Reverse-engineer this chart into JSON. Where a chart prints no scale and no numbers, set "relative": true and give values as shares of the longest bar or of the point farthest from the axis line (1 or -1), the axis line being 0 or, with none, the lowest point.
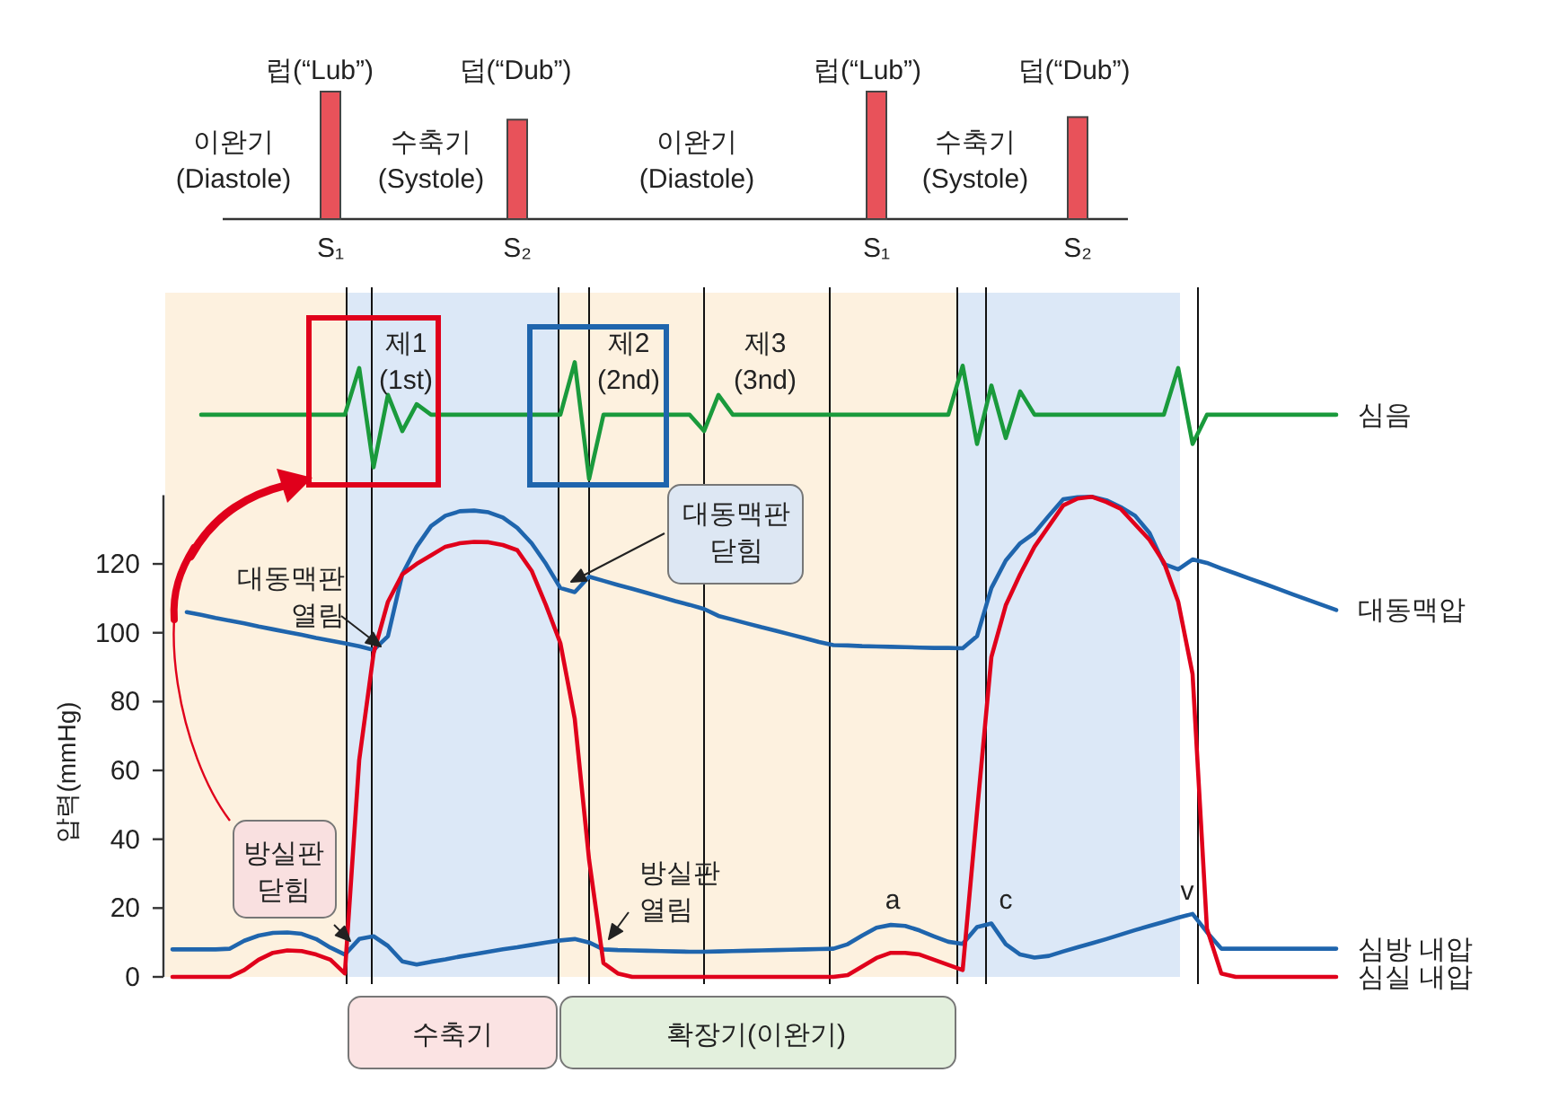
{
  "chart_data": [
    {
      "type": "bar",
      "relative": true,
      "color": "#e8525a",
      "categories": [
        null,
        null,
        null,
        null,
        null,
        null,
        null,
        null,
        null,
        null,
        null,
        "S₁",
        null,
        null,
        null,
        null,
        null,
        null,
        null,
        null,
        null,
        null,
        null,
        null,
        "S₂",
        null,
        null,
        null,
        null,
        null,
        null,
        null,
        null,
        null,
        null,
        null,
        null,
        null,
        null,
        null,
        null,
        null,
        null,
        null,
        null,
        null,
        null,
        null,
        null,
        "S₁",
        null,
        null,
        null,
        null,
        null,
        null,
        null,
        null,
        null,
        null,
        null,
        null,
        null,
        "S₂",
        null,
        null,
        null,
        null,
        null,
        null,
        null,
        null,
        null,
        null,
        null,
        null,
        null,
        null,
        null,
        null,
        null,
        null
      ],
      "values": [
        null,
        null,
        null,
        null,
        null,
        null,
        null,
        null,
        null,
        null,
        null,
        1,
        null,
        null,
        null,
        null,
        null,
        null,
        null,
        null,
        null,
        null,
        null,
        null,
        0.78,
        null,
        null,
        null,
        null,
        null,
        null,
        null,
        null,
        null,
        null,
        null,
        null,
        null,
        null,
        null,
        null,
        null,
        null,
        null,
        null,
        null,
        null,
        null,
        null,
        1,
        null,
        null,
        null,
        null,
        null,
        null,
        null,
        null,
        null,
        null,
        null,
        null,
        null,
        0.8,
        null,
        null,
        null,
        null,
        null,
        null,
        null,
        null,
        null,
        null,
        null,
        null,
        null,
        null,
        null,
        null,
        null,
        null
      ],
      "annotations": [
        "이완기\n(Diastole)",
        "럽(“Lub”)",
        "수축기\n(Systole)",
        "덥(“Dub”)",
        "이완기\n(Diastole)",
        "럽(“Lub”)",
        "수축기\n(Systole)",
        "덥(“Dub”)"
      ]
    },
    {
      "type": "line",
      "relative": true,
      "categories": [
        null,
        null,
        null,
        null,
        null,
        null,
        null,
        null,
        null,
        null,
        null,
        null,
        null,
        null,
        null,
        null,
        null,
        null,
        null,
        null,
        null,
        null,
        null,
        null,
        null,
        null,
        null,
        null,
        null,
        null,
        null,
        null,
        null,
        null,
        null,
        null,
        null,
        null,
        null,
        null,
        null,
        null,
        null,
        null,
        null,
        null,
        null,
        null,
        null,
        null,
        null,
        null,
        null,
        null,
        null,
        null,
        null,
        null,
        null,
        null,
        null,
        null,
        null,
        null,
        null,
        null,
        null,
        null,
        null,
        null,
        null,
        null,
        null,
        null,
        null,
        null,
        null,
        null,
        null,
        null,
        null,
        null
      ],
      "series": [
        {
          "name": "심음",
          "color": "#1a9a3c",
          "values": [
            null,
            null,
            0.55,
            0.55,
            0.55,
            0.55,
            0.55,
            0.55,
            0.55,
            0.55,
            0.55,
            0.55,
            0.55,
            0.95,
            0.1,
            0.72,
            0.41,
            0.64,
            0.55,
            0.55,
            0.55,
            0.55,
            0.55,
            0.55,
            0.55,
            0.55,
            0.55,
            0.55,
            1,
            0,
            0.55,
            0.55,
            0.55,
            0.55,
            0.55,
            0.55,
            0.55,
            0.41,
            0.72,
            0.55,
            0.55,
            0.55,
            0.55,
            0.55,
            0.55,
            0.55,
            0.55,
            0.55,
            0.55,
            0.55,
            0.55,
            0.55,
            0.55,
            0.55,
            0.55,
            0.97,
            0.3,
            0.8,
            0.35,
            0.75,
            0.55,
            0.55,
            0.55,
            0.55,
            0.55,
            0.55,
            0.55,
            0.55,
            0.55,
            0.55,
            0.95,
            0.3,
            0.55,
            0.55,
            0.55,
            0.55,
            0.55,
            0.55,
            0.55,
            0.55,
            0.55,
            0.55
          ]
        }
      ],
      "annotations": [
        "제1\n(1st)",
        "제2\n(2nd)",
        "제3\n(3nd)"
      ]
    },
    {
      "type": "line",
      "ylabel": "압력(mmHg)",
      "ylim": [
        0,
        140
      ],
      "yticks": [
        0,
        20,
        40,
        60,
        80,
        100,
        120
      ],
      "categories": [
        null,
        null,
        null,
        null,
        null,
        null,
        null,
        null,
        null,
        null,
        null,
        null,
        null,
        null,
        null,
        null,
        null,
        null,
        null,
        null,
        null,
        null,
        null,
        null,
        null,
        null,
        null,
        null,
        null,
        null,
        null,
        null,
        null,
        null,
        null,
        null,
        null,
        null,
        null,
        null,
        null,
        null,
        null,
        null,
        null,
        null,
        null,
        null,
        null,
        null,
        null,
        null,
        null,
        null,
        null,
        null,
        null,
        null,
        null,
        null,
        null,
        null,
        null,
        null,
        null,
        null,
        null,
        null,
        null,
        null,
        null,
        null,
        null,
        null,
        null,
        null,
        null,
        null,
        null,
        null,
        null,
        null
      ],
      "series": [
        {
          "name": "대동맥압",
          "color": "#1f65ad",
          "values": [
            null,
            106,
            105.2,
            104.3,
            103.5,
            102.7,
            101.8,
            101.0,
            100.2,
            99.4,
            98.5,
            97.7,
            96.9,
            96.1,
            95.0,
            99,
            117,
            125,
            131,
            134,
            135.3,
            135.5,
            135,
            133.5,
            130.5,
            126,
            120,
            113,
            111.8,
            116.3,
            115.1,
            113.9,
            112.8,
            111.6,
            110.4,
            109.2,
            108.1,
            106.9,
            104.9,
            103.8,
            102.7,
            101.6,
            100.6,
            99.5,
            98.4,
            97.3,
            96.4,
            96.3,
            96.1,
            96.0,
            95.9,
            95.8,
            95.7,
            95.6,
            95.6,
            95.5,
            99,
            113,
            121,
            126,
            129,
            134,
            138.8,
            139.4,
            139.5,
            138.5,
            136.5,
            134,
            129,
            120,
            118.4,
            121.3,
            120.3,
            118.7,
            117.2,
            115.7,
            114.2,
            112.7,
            111.1,
            109.6,
            108.1,
            106.6
          ]
        },
        {
          "name": "심방 내압",
          "color": "#1f65ad",
          "values": [
            8,
            8,
            8,
            8,
            8.2,
            10.5,
            12,
            12.8,
            12.9,
            12.5,
            11,
            8.5,
            6.5,
            11,
            11.8,
            9,
            4.5,
            3.6,
            4.4,
            5.1,
            5.9,
            6.6,
            7.3,
            8.0,
            8.6,
            9.3,
            10.0,
            10.6,
            11.0,
            10,
            8,
            7.8,
            7.7,
            7.6,
            7.5,
            7.4,
            7.3,
            7.3,
            7.4,
            7.5,
            7.6,
            7.7,
            7.8,
            7.9,
            8.0,
            8.1,
            8.2,
            9.5,
            12,
            14.3,
            15.1,
            14.8,
            13.5,
            11.8,
            10.2,
            9.6,
            14.5,
            15.5,
            9.5,
            6.5,
            5.6,
            6.1,
            7.4,
            8.6,
            9.8,
            11,
            12.3,
            13.6,
            14.8,
            16,
            17.2,
            18.3,
            13,
            8.2,
            8.2,
            8.2,
            8.2,
            8.2,
            8.2,
            8.2,
            8.2,
            8.2
          ]
        },
        {
          "name": "심실 내압",
          "color": "#e0001b",
          "values": [
            0,
            0,
            0,
            0,
            0,
            2,
            5,
            7,
            7.7,
            7.5,
            6.5,
            5,
            1,
            63,
            94,
            109,
            117,
            120,
            122.5,
            125,
            126,
            126.4,
            126.3,
            125.5,
            124,
            118,
            108,
            97,
            75,
            34,
            4,
            1,
            0,
            0,
            0,
            0,
            0,
            0,
            0,
            0,
            0,
            0,
            0,
            0,
            0,
            0,
            0,
            0.5,
            3,
            5.5,
            7,
            7,
            6.5,
            5,
            3.5,
            2,
            48,
            93,
            108,
            117,
            125,
            131,
            137,
            139,
            139.5,
            138,
            136,
            131.5,
            127,
            120.5,
            109,
            88,
            14,
            1,
            0,
            0,
            0,
            0,
            0,
            0,
            0,
            0
          ]
        }
      ],
      "annotations": [
        "대동맥판\n열림",
        "대동맥판\n닫힘",
        "방실판\n닫힘",
        "방실판\n열림",
        "a",
        "c",
        "v",
        "수축기",
        "확장기(이완기)"
      ]
    }
  ]
}
